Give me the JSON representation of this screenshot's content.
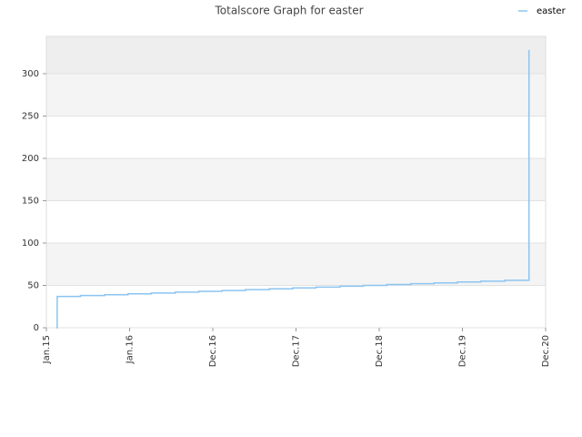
{
  "chart_data": {
    "type": "line",
    "title": "Totalscore Graph for easter",
    "step": "post",
    "series": [
      {
        "name": "easter",
        "color": "#8cc4f0",
        "x": [
          0.12,
          0.13,
          0.41,
          0.7,
          0.98,
          1.26,
          1.55,
          1.83,
          2.11,
          2.39,
          2.68,
          2.96,
          3.24,
          3.53,
          3.81,
          4.09,
          4.38,
          4.66,
          4.94,
          5.22,
          5.51,
          5.8
        ],
        "values": [
          0,
          37,
          38,
          39,
          40,
          41,
          42,
          43,
          44,
          45,
          46,
          47,
          48,
          49,
          50,
          51,
          52,
          53,
          54,
          55,
          56,
          328
        ]
      }
    ],
    "xlim": [
      0,
      6
    ],
    "xticks": [
      {
        "value": 0,
        "label": "Jan.15"
      },
      {
        "value": 1,
        "label": "Jan.16"
      },
      {
        "value": 2,
        "label": "Dec.16"
      },
      {
        "value": 3,
        "label": "Dec.17"
      },
      {
        "value": 4,
        "label": "Dec.18"
      },
      {
        "value": 5,
        "label": "Dec.19"
      },
      {
        "value": 6,
        "label": "Dec.20"
      }
    ],
    "ylim": [
      0,
      344
    ],
    "yticks": [
      0,
      50,
      100,
      150,
      200,
      250,
      300
    ],
    "grid": true,
    "legend": "top-right"
  }
}
